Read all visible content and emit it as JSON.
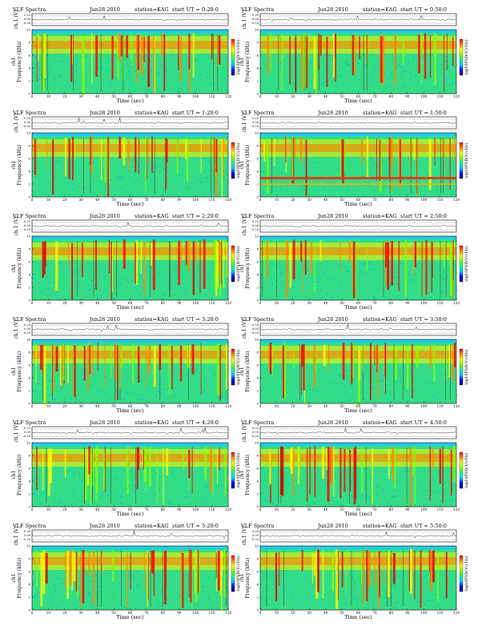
{
  "chart_data": {
    "type": "heatmap",
    "header_left": "VLF Spectra",
    "date": "Jun28 2010",
    "station": "station=KAG",
    "start_prefix": "start UT =",
    "waveform": {
      "ylabel": "ch.1 (V)",
      "yticks": [
        "0.20",
        "0.00",
        "-0.20"
      ],
      "ylim": [
        -0.2,
        0.2
      ]
    },
    "spectrogram": {
      "ylabel": "Frequency (kHz)",
      "channel_label": "ch1",
      "yticks": [
        "0",
        "2",
        "4",
        "6",
        "8",
        "10"
      ],
      "ylim": [
        0,
        10
      ]
    },
    "xlabel": "Time (sec)",
    "xticks": [
      "0",
      "10",
      "20",
      "30",
      "40",
      "50",
      "60",
      "70",
      "80",
      "90",
      "100",
      "110",
      "120"
    ],
    "xlim": [
      0,
      120
    ],
    "colorbar": {
      "label": "log10PSD(V/√Hz)",
      "colors": [
        "#000066",
        "#0000ff",
        "#00ccff",
        "#00ff88",
        "#88ff00",
        "#ffff00",
        "#ff8800",
        "#ff0000"
      ]
    },
    "panels": [
      {
        "start_ut": "0:20:0",
        "date": "Jun28 2010"
      },
      {
        "start_ut": "0:50:0",
        "date": "Jun28 2010"
      },
      {
        "start_ut": "1:20:0",
        "date": "Jun28 2010"
      },
      {
        "start_ut": "1:50:0",
        "date": "Jun28 2010"
      },
      {
        "start_ut": "2:20:0",
        "date": "Jun28 2010"
      },
      {
        "start_ut": "2:50:0",
        "date": "Jun28 2010"
      },
      {
        "start_ut": "3:20:0",
        "date": "Jun28 2010"
      },
      {
        "start_ut": "3:50:0",
        "date": "Jun28 2010"
      },
      {
        "start_ut": "4:20:0",
        "date": "Jun28 2010"
      },
      {
        "start_ut": "4:50:0",
        "date": "Jun28 2010"
      },
      {
        "start_ut": "5:20:0",
        "date": "Jun28 2010"
      },
      {
        "start_ut": "5:50:0",
        "date": "Jun28 2010"
      }
    ]
  }
}
